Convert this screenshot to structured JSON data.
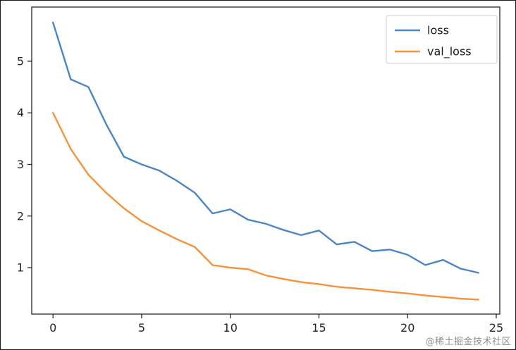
{
  "chart_data": {
    "type": "line",
    "title": "",
    "xlabel": "",
    "ylabel": "",
    "x": [
      0,
      1,
      2,
      3,
      4,
      5,
      6,
      7,
      8,
      9,
      10,
      11,
      12,
      13,
      14,
      15,
      16,
      17,
      18,
      19,
      20,
      21,
      22,
      23,
      24
    ],
    "series": [
      {
        "name": "loss",
        "color": "#4a86c5",
        "values": [
          5.75,
          4.65,
          4.5,
          3.78,
          3.15,
          3.0,
          2.88,
          2.68,
          2.45,
          2.05,
          2.13,
          1.93,
          1.85,
          1.73,
          1.63,
          1.72,
          1.45,
          1.5,
          1.32,
          1.35,
          1.25,
          1.05,
          1.15,
          0.98,
          0.9
        ]
      },
      {
        "name": "val_loss",
        "color": "#f5923e",
        "values": [
          4.0,
          3.3,
          2.8,
          2.45,
          2.15,
          1.9,
          1.72,
          1.55,
          1.4,
          1.05,
          1.0,
          0.97,
          0.85,
          0.78,
          0.72,
          0.68,
          0.63,
          0.6,
          0.57,
          0.53,
          0.5,
          0.46,
          0.43,
          0.4,
          0.38
        ]
      }
    ],
    "xticks": [
      0,
      5,
      10,
      15,
      20,
      25
    ],
    "yticks": [
      1,
      2,
      3,
      4,
      5
    ],
    "xlim": [
      -1.2,
      25.2
    ],
    "ylim": [
      0.1,
      6.05
    ],
    "grid": false,
    "legend_position": "upper right",
    "legend_labels": [
      "loss",
      "val_loss"
    ],
    "axis_color": "#262626",
    "text_color": "#262626",
    "legend_border_color": "#cccccc"
  },
  "watermark": "@稀土掘金技术社区"
}
